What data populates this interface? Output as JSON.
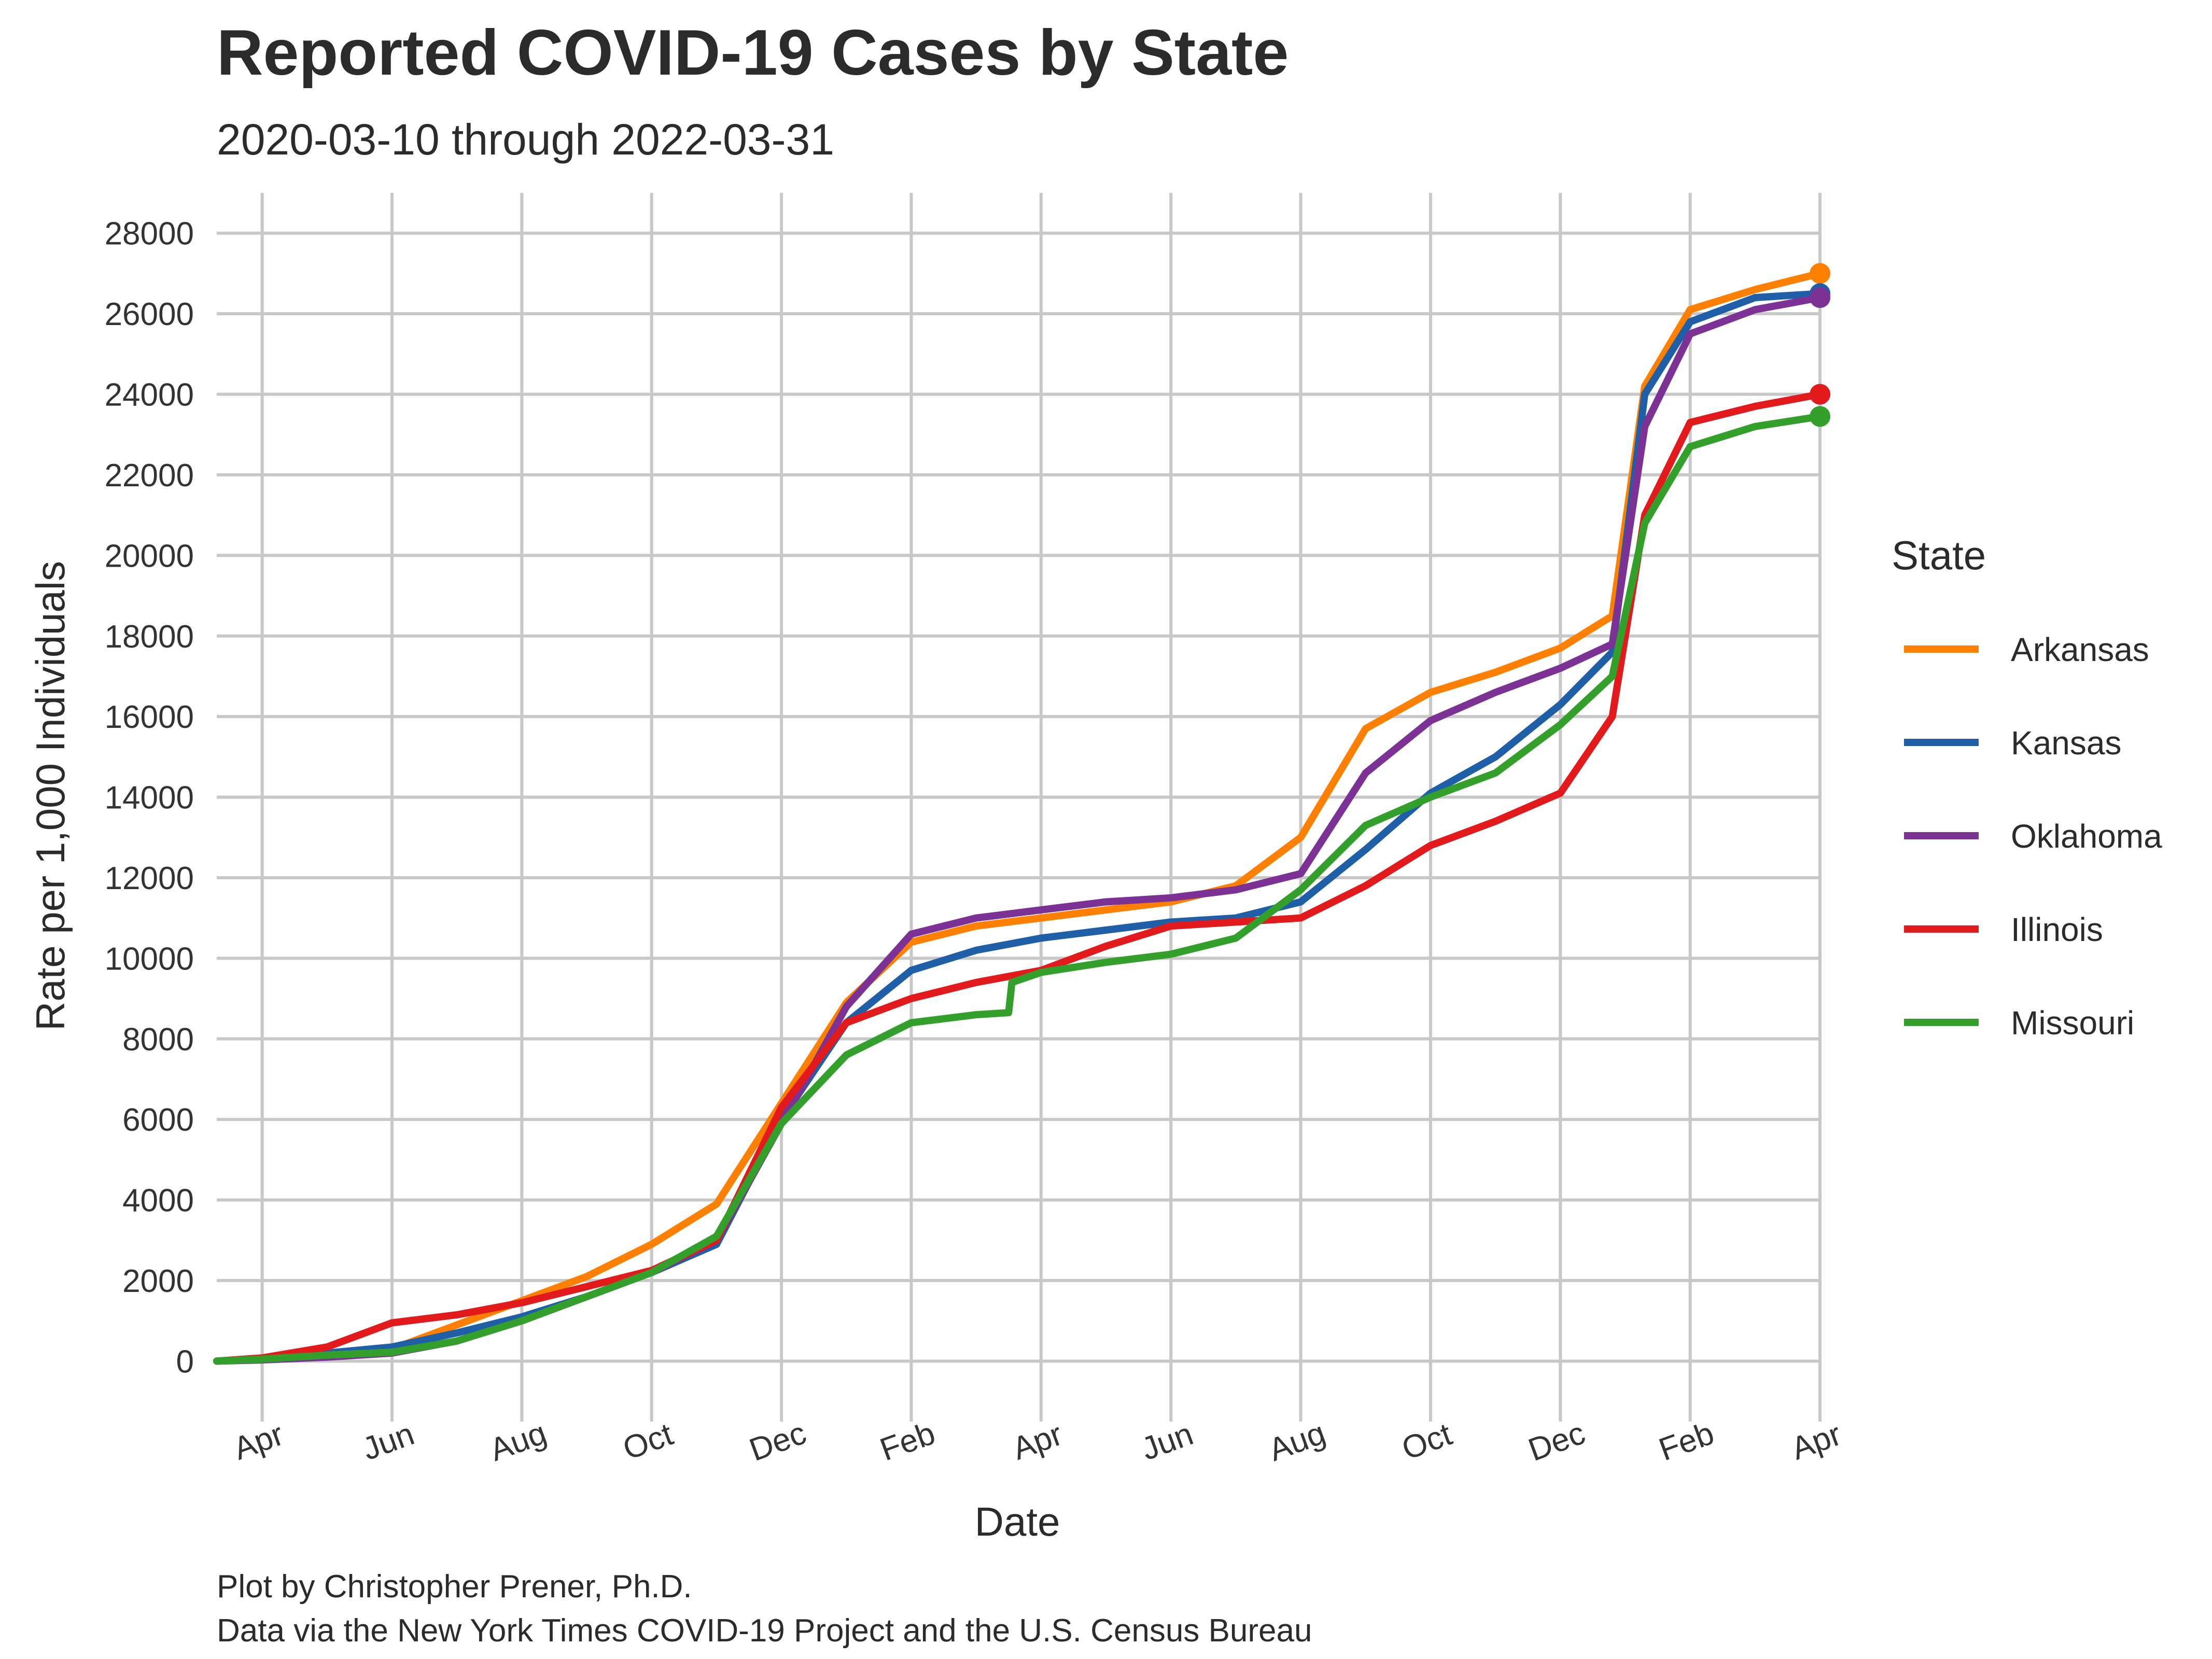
{
  "chart_data": {
    "type": "line",
    "title": "Reported COVID-19 Cases by State",
    "subtitle": "2020-03-10 through 2022-03-31",
    "xlabel": "Date",
    "ylabel": "Rate per 1,000 Individuals",
    "x_tick_labels": [
      "Apr",
      "Jun",
      "Aug",
      "Oct",
      "Dec",
      "Feb",
      "Apr",
      "Jun",
      "Aug",
      "Oct",
      "Dec",
      "Feb",
      "Apr"
    ],
    "x_tick_months": [
      0,
      2,
      4,
      6,
      8,
      10,
      12,
      14,
      16,
      18,
      20,
      22,
      24
    ],
    "x_range_months": [
      -0.7,
      24.0
    ],
    "ylim": [
      -1500,
      29000
    ],
    "y_ticks": [
      0,
      2000,
      4000,
      6000,
      8000,
      10000,
      12000,
      14000,
      16000,
      18000,
      20000,
      22000,
      24000,
      26000,
      28000
    ],
    "grid": true,
    "legend": {
      "title": "State",
      "position": "right"
    },
    "caption": [
      "Plot by Christopher Prener, Ph.D.",
      "Data via the New York Times COVID-19 Project and the U.S. Census Bureau"
    ],
    "series": [
      {
        "name": "Arkansas",
        "color": "#FF7F00",
        "x": [
          -0.7,
          0,
          1,
          2,
          3,
          4,
          5,
          6,
          7,
          8,
          9,
          10,
          11,
          12,
          13,
          14,
          15,
          16,
          17,
          18,
          19,
          20,
          20.8,
          21.3,
          22,
          23,
          24
        ],
        "y": [
          0,
          50,
          150,
          300,
          900,
          1500,
          2100,
          2900,
          3900,
          6400,
          8900,
          10400,
          10800,
          11000,
          11200,
          11400,
          11800,
          13000,
          15700,
          16600,
          17100,
          17700,
          18500,
          24200,
          26100,
          26600,
          27000
        ]
      },
      {
        "name": "Kansas",
        "color": "#1F5FA8",
        "x": [
          -0.7,
          0,
          1,
          2,
          3,
          4,
          5,
          6,
          7,
          8,
          9,
          10,
          11,
          12,
          13,
          14,
          15,
          16,
          17,
          18,
          19,
          20,
          20.8,
          21.3,
          22,
          23,
          24
        ],
        "y": [
          0,
          50,
          200,
          350,
          700,
          1100,
          1600,
          2200,
          2900,
          6000,
          8400,
          9700,
          10200,
          10500,
          10700,
          10900,
          11000,
          11400,
          12700,
          14100,
          15000,
          16300,
          17600,
          24000,
          25800,
          26400,
          26500
        ]
      },
      {
        "name": "Oklahoma",
        "color": "#7B3294",
        "x": [
          -0.7,
          0,
          1,
          2,
          3,
          4,
          5,
          6,
          7,
          8,
          9,
          10,
          11,
          12,
          13,
          14,
          15,
          16,
          17,
          18,
          19,
          20,
          20.8,
          21.3,
          22,
          23,
          24
        ],
        "y": [
          0,
          30,
          100,
          200,
          500,
          1000,
          1600,
          2200,
          3000,
          5900,
          8800,
          10600,
          11000,
          11200,
          11400,
          11500,
          11700,
          12100,
          14600,
          15900,
          16600,
          17200,
          17800,
          23200,
          25500,
          26100,
          26400
        ]
      },
      {
        "name": "Illinois",
        "color": "#E31A1C",
        "x": [
          -0.7,
          0,
          1,
          2,
          3,
          4,
          5,
          6,
          7,
          8,
          9,
          10,
          11,
          12,
          13,
          14,
          15,
          16,
          17,
          18,
          19,
          20,
          20.8,
          21.3,
          22,
          23,
          24
        ],
        "y": [
          0,
          80,
          350,
          950,
          1150,
          1450,
          1850,
          2250,
          3000,
          6300,
          8400,
          9000,
          9400,
          9700,
          10300,
          10800,
          10900,
          11000,
          11800,
          12800,
          13400,
          14100,
          16000,
          21000,
          23300,
          23700,
          24000
        ]
      },
      {
        "name": "Missouri",
        "color": "#33A02C",
        "x": [
          -0.7,
          0,
          1,
          2,
          3,
          4,
          5,
          6,
          7,
          8,
          9,
          10,
          11,
          11.5,
          11.55,
          12,
          13,
          14,
          15,
          16,
          17,
          18,
          19,
          20,
          20.8,
          21.3,
          22,
          23,
          24
        ],
        "y": [
          0,
          50,
          150,
          220,
          500,
          1000,
          1600,
          2200,
          3100,
          5900,
          7600,
          8400,
          8600,
          8650,
          9400,
          9650,
          9900,
          10100,
          10500,
          11700,
          13300,
          14000,
          14600,
          15800,
          17000,
          20800,
          22700,
          23200,
          23450
        ]
      }
    ]
  }
}
